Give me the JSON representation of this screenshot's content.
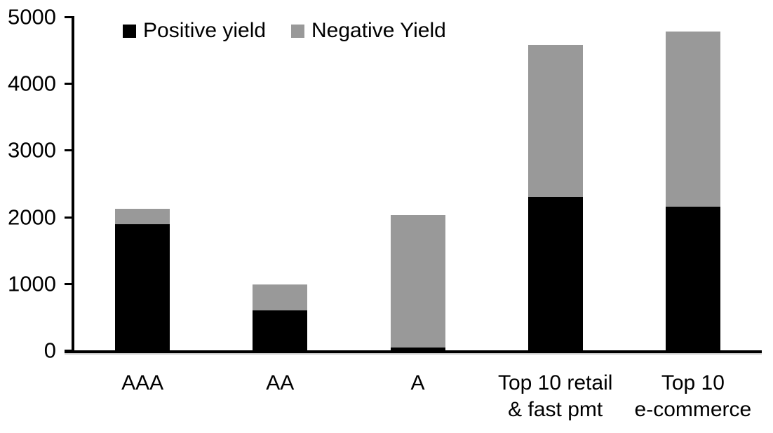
{
  "chart_data": {
    "type": "bar",
    "stacked": true,
    "title": "",
    "xlabel": "",
    "ylabel": "",
    "categories": [
      "AAA",
      "AA",
      "A",
      "Top 10 retail\n& fast pmt",
      "Top 10\ne-commerce"
    ],
    "series": [
      {
        "name": "Positive yield",
        "color": "#000000",
        "values": [
          1890,
          600,
          40,
          2300,
          2150
        ]
      },
      {
        "name": "Negative Yield",
        "color": "#999999",
        "values": [
          230,
          390,
          1990,
          2280,
          2630
        ]
      }
    ],
    "ylim": [
      0,
      5000
    ],
    "yticks": [
      0,
      1000,
      2000,
      3000,
      4000,
      5000
    ],
    "legend_position": "top",
    "grid": false
  }
}
